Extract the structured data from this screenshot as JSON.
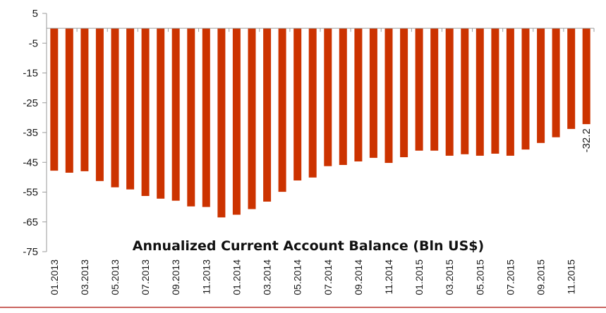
{
  "chart_data": {
    "type": "bar",
    "title": "Annualized Current Account Balance (Bln US$)",
    "xlabel": "",
    "ylabel": "",
    "ylim": [
      -75,
      5
    ],
    "yticks": [
      5,
      -5,
      -15,
      -25,
      -35,
      -45,
      -55,
      -65,
      -75
    ],
    "grid": false,
    "legend": null,
    "bar_color": "#CC3300",
    "categories": [
      "01.2013",
      "02.2013",
      "03.2013",
      "04.2013",
      "05.2013",
      "06.2013",
      "07.2013",
      "08.2013",
      "09.2013",
      "10.2013",
      "11.2013",
      "12.2013",
      "01.2014",
      "02.2014",
      "03.2014",
      "04.2014",
      "05.2014",
      "06.2014",
      "07.2014",
      "08.2014",
      "09.2014",
      "10.2014",
      "11.2014",
      "12.2014",
      "01.2015",
      "02.2015",
      "03.2015",
      "04.2015",
      "05.2015",
      "06.2015",
      "07.2015",
      "08.2015",
      "09.2015",
      "10.2015",
      "11.2015",
      "12.2015"
    ],
    "xtick_labels_shown": [
      "01.2013",
      "03.2013",
      "05.2013",
      "07.2013",
      "09.2013",
      "11.2013",
      "01.2014",
      "03.2014",
      "05.2014",
      "07.2014",
      "09.2014",
      "11.2014",
      "01.2015",
      "03.2015",
      "05.2015",
      "07.2015",
      "09.2015",
      "11.2015"
    ],
    "values": [
      -47.8,
      -48.5,
      -48.0,
      -51.3,
      -53.4,
      -54.1,
      -56.3,
      -57.2,
      -57.9,
      -59.8,
      -60.0,
      -63.5,
      -62.6,
      -60.7,
      -58.2,
      -54.9,
      -51.1,
      -50.1,
      -46.3,
      -45.9,
      -44.7,
      -43.5,
      -45.2,
      -43.3,
      -41.1,
      -41.1,
      -42.8,
      -42.3,
      -42.8,
      -42.1,
      -42.8,
      -40.7,
      -38.5,
      -36.6,
      -33.8,
      -32.2
    ],
    "annotations": [
      {
        "category": "12.2015",
        "text": "-32.2"
      }
    ]
  }
}
